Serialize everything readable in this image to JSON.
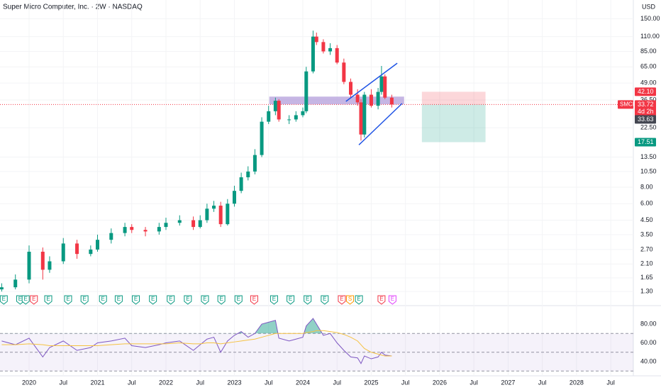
{
  "chart_data": [
    {
      "type": "candlestick",
      "title": "Super Micro Computer, Inc. · 2W · NASDAQ",
      "y_axis_label": "USD",
      "symbol": "SMCI",
      "countdown": "4d 2h",
      "log_scale": true,
      "up_color": "#089981",
      "down_color": "#f23645",
      "x": [
        2019.6,
        2019.8,
        2020.0,
        2020.2,
        2020.3,
        2020.5,
        2020.7,
        2020.9,
        2021.0,
        2021.2,
        2021.4,
        2021.5,
        2021.7,
        2021.9,
        2022.0,
        2022.2,
        2022.4,
        2022.5,
        2022.6,
        2022.7,
        2022.8,
        2022.9,
        2023.0,
        2023.1,
        2023.2,
        2023.3,
        2023.4,
        2023.5,
        2023.6,
        2023.65,
        2023.8,
        2023.9,
        2024.0,
        2024.05,
        2024.15,
        2024.2,
        2024.3,
        2024.4,
        2024.5,
        2024.6,
        2024.7,
        2024.8,
        2024.85,
        2024.9,
        2025.0,
        2025.1,
        2025.15,
        2025.2,
        2025.3
      ],
      "open": [
        1.35,
        1.4,
        1.6,
        2.6,
        1.9,
        2.2,
        3.0,
        2.5,
        2.7,
        3.2,
        3.6,
        4.0,
        3.8,
        3.7,
        4.0,
        4.3,
        4.5,
        4.0,
        4.5,
        5.5,
        5.8,
        4.2,
        6.0,
        7.5,
        9.5,
        10.5,
        14,
        25,
        30,
        36,
        26,
        26,
        28,
        30,
        60,
        110,
        100,
        85,
        90,
        70,
        50,
        40,
        35,
        20,
        40,
        33,
        42,
        55,
        38
      ],
      "high": [
        1.5,
        1.75,
        2.9,
        2.8,
        2.4,
        3.3,
        3.2,
        2.9,
        3.5,
        3.9,
        4.3,
        4.2,
        4.0,
        4.3,
        4.7,
        4.9,
        4.8,
        4.9,
        6.0,
        6.3,
        6.2,
        6.5,
        8.2,
        10.3,
        11.5,
        15.5,
        27,
        33,
        38,
        37,
        28,
        30,
        32,
        65,
        122,
        118,
        105,
        98,
        95,
        75,
        53,
        44,
        37,
        42,
        44,
        45,
        66,
        57,
        40
      ],
      "low": [
        1.3,
        1.35,
        1.5,
        1.6,
        1.8,
        2.1,
        2.3,
        2.4,
        2.6,
        3.0,
        3.4,
        3.6,
        3.4,
        3.5,
        3.8,
        4.1,
        3.8,
        3.9,
        4.3,
        5.2,
        4.0,
        4.1,
        5.7,
        7.2,
        9.0,
        10.0,
        13.5,
        24,
        28,
        25,
        24,
        25,
        27,
        29,
        58,
        95,
        82,
        80,
        68,
        48,
        38,
        33,
        18,
        19,
        32,
        31,
        40,
        37,
        32
      ],
      "close": [
        1.4,
        1.6,
        2.6,
        1.9,
        2.2,
        3.0,
        2.5,
        2.7,
        3.2,
        3.6,
        4.0,
        3.8,
        3.7,
        4.0,
        4.3,
        4.5,
        4.0,
        4.5,
        5.5,
        5.8,
        4.2,
        6.0,
        7.5,
        9.5,
        10.5,
        14,
        25,
        30,
        36,
        26,
        26,
        28,
        30,
        60,
        110,
        100,
        85,
        90,
        70,
        50,
        40,
        35,
        20,
        40,
        33,
        42,
        55,
        38,
        33.72
      ],
      "ylim": [
        1.03,
        208
      ],
      "yticks": [
        {
          "value": 150,
          "label": "150.00"
        },
        {
          "value": 110,
          "label": "110.00"
        },
        {
          "value": 85,
          "label": "85.00"
        },
        {
          "value": 65,
          "label": "65.00"
        },
        {
          "value": 49,
          "label": "49.00"
        },
        {
          "value": 36.5,
          "label": "36.50"
        },
        {
          "value": 22.5,
          "label": "22.50"
        },
        {
          "value": 13.5,
          "label": "13.50"
        },
        {
          "value": 10.5,
          "label": "10.50"
        },
        {
          "value": 8,
          "label": "8.00"
        },
        {
          "value": 6,
          "label": "6.00"
        },
        {
          "value": 4.5,
          "label": "4.50"
        },
        {
          "value": 3.5,
          "label": "3.50"
        },
        {
          "value": 2.7,
          "label": "2.70"
        },
        {
          "value": 2.1,
          "label": "2.10"
        },
        {
          "value": 1.65,
          "label": "1.65"
        },
        {
          "value": 1.3,
          "label": "1.30"
        }
      ],
      "xlim": [
        2019.575,
        2028.83
      ],
      "xticks": [
        2020,
        {
          "value": 2020.5,
          "label": "Jul"
        },
        2021,
        {
          "value": 2021.5,
          "label": "Jul"
        },
        2022,
        {
          "value": 2022.5,
          "label": "Jul"
        },
        2023,
        {
          "value": 2023.5,
          "label": "Jul"
        },
        2024,
        {
          "value": 2024.5,
          "label": "Jul"
        },
        2025,
        {
          "value": 2025.5,
          "label": "Jul"
        },
        2026,
        {
          "value": 2026.5,
          "label": "Jul"
        },
        2027,
        {
          "value": 2027.5,
          "label": "Jul"
        },
        2028,
        {
          "value": 2028.5,
          "label": "Jul"
        }
      ],
      "last_price": 33.72,
      "other_price": 33.63,
      "zone": {
        "x": [
          2023.51,
          2025.48
        ],
        "y": [
          33.8,
          38.7
        ],
        "color": "#b39ddb"
      },
      "trendlines": [
        {
          "x": [
            2024.63,
            2025.38
          ],
          "y": [
            35.6,
            69.2
          ]
        },
        {
          "x": [
            2024.82,
            2025.45
          ],
          "y": [
            16.7,
            34.3
          ]
        }
      ],
      "position": {
        "x": [
          2025.74,
          2026.67
        ],
        "stop": {
          "value": 42.1,
          "label": "42.10"
        },
        "entry": 33.72,
        "target": 17.51
      },
      "events": [
        {
          "x": 2019.63,
          "label": "E",
          "color": "#089981"
        },
        {
          "x": 2019.87,
          "label": "E",
          "color": "#089981"
        },
        {
          "x": 2019.95,
          "label": "E",
          "color": "#089981"
        },
        {
          "x": 2020.07,
          "label": "E",
          "color": "#f23645"
        },
        {
          "x": 2020.28,
          "label": "E",
          "color": "#089981"
        },
        {
          "x": 2020.57,
          "label": "E",
          "color": "#089981"
        },
        {
          "x": 2020.81,
          "label": "E",
          "color": "#089981"
        },
        {
          "x": 2021.08,
          "label": "E",
          "color": "#089981"
        },
        {
          "x": 2021.31,
          "label": "E",
          "color": "#089981"
        },
        {
          "x": 2021.56,
          "label": "E",
          "color": "#089981"
        },
        {
          "x": 2021.81,
          "label": "E",
          "color": "#089981"
        },
        {
          "x": 2022.07,
          "label": "E",
          "color": "#089981"
        },
        {
          "x": 2022.32,
          "label": "E",
          "color": "#089981"
        },
        {
          "x": 2022.57,
          "label": "E",
          "color": "#089981"
        },
        {
          "x": 2022.81,
          "label": "E",
          "color": "#089981"
        },
        {
          "x": 2023.06,
          "label": "E",
          "color": "#089981"
        },
        {
          "x": 2023.29,
          "label": "E",
          "color": "#f23645"
        },
        {
          "x": 2023.58,
          "label": "E",
          "color": "#089981"
        },
        {
          "x": 2023.82,
          "label": "E",
          "color": "#089981"
        },
        {
          "x": 2024.07,
          "label": "E",
          "color": "#089981"
        },
        {
          "x": 2024.32,
          "label": "E",
          "color": "#089981"
        },
        {
          "x": 2024.57,
          "label": "E",
          "color": "#f23645"
        },
        {
          "x": 2024.69,
          "label": "S",
          "color": "#ff9800"
        },
        {
          "x": 2024.82,
          "label": "E",
          "color": "#089981"
        },
        {
          "x": 2025.15,
          "label": "E",
          "color": "#f23645"
        },
        {
          "x": 2025.31,
          "label": "E",
          "color": "#e040fb"
        }
      ]
    },
    {
      "type": "line",
      "series": [
        {
          "color": "#7e57c2",
          "values": [
            62,
            58,
            65,
            45,
            55,
            62,
            52,
            55,
            60,
            62,
            65,
            57,
            55,
            58,
            60,
            62,
            52,
            58,
            64,
            66,
            50,
            62,
            68,
            72,
            66,
            70,
            80,
            82,
            84,
            65,
            62,
            64,
            66,
            78,
            86,
            80,
            68,
            70,
            60,
            52,
            45,
            44,
            38,
            46,
            43,
            45,
            50,
            47,
            46
          ]
        },
        {
          "color": "#f5c242",
          "values": [
            58,
            58,
            59,
            58,
            57,
            57,
            57,
            57,
            57,
            58,
            59,
            59,
            59,
            59,
            59,
            60,
            59,
            59,
            60,
            60,
            59,
            60,
            61,
            62,
            63,
            64,
            66,
            68,
            70,
            70,
            70,
            70,
            70,
            71,
            72,
            73,
            73,
            72,
            71,
            69,
            66,
            62,
            58,
            54,
            50,
            48,
            47,
            46,
            46
          ]
        }
      ],
      "ylim": [
        24.9,
        98.9
      ],
      "yticks": [
        {
          "value": 80,
          "label": "80.00"
        },
        {
          "value": 60,
          "label": "60.00"
        },
        {
          "value": 40,
          "label": "40.00"
        }
      ],
      "levels": [
        30,
        50,
        70
      ]
    }
  ]
}
